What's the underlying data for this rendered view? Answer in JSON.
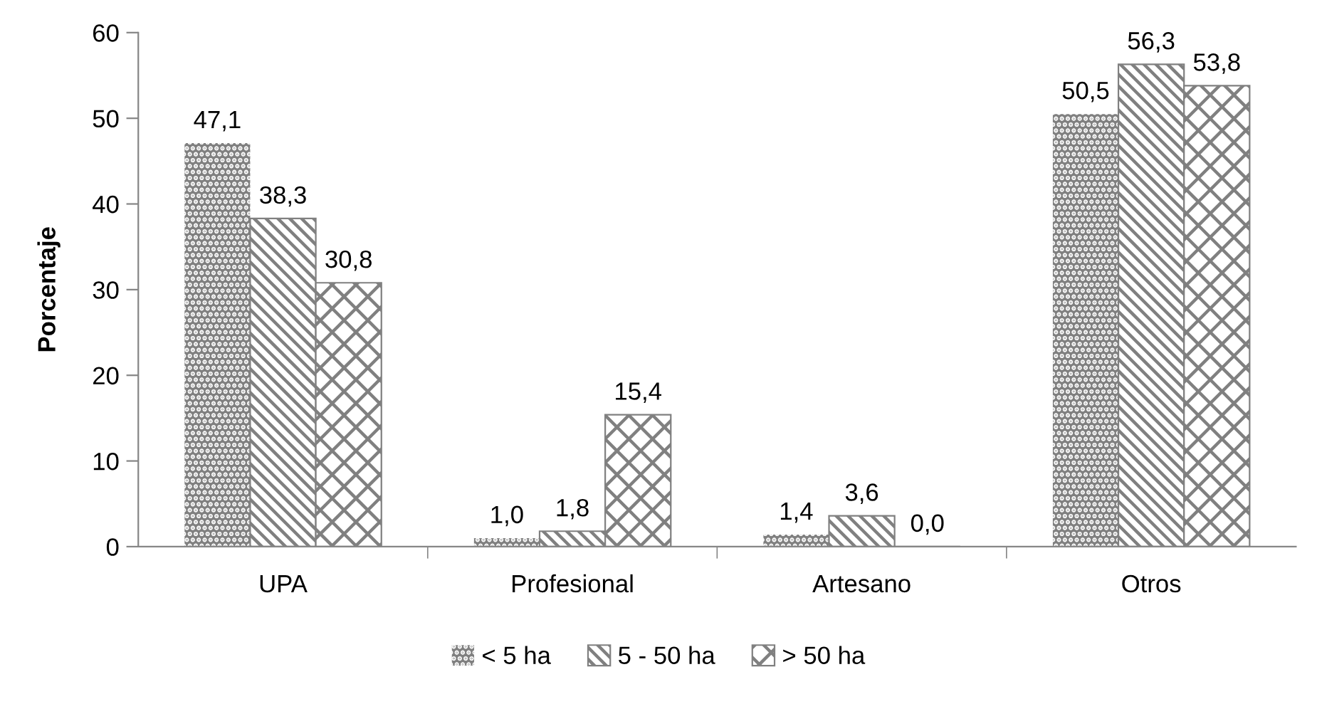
{
  "chart_data": {
    "type": "bar",
    "ylabel": "Porcentaje",
    "categories": [
      "UPA",
      "Profesional",
      "Artesano",
      "Otros"
    ],
    "series": [
      {
        "name": "< 5 ha",
        "color": "#808080",
        "values": [
          47.1,
          1.0,
          1.4,
          50.5
        ],
        "value_labels": [
          "47,1",
          "1,0",
          "1,4",
          "50,5"
        ]
      },
      {
        "name": "5 - 50 ha",
        "color": "#808080",
        "values": [
          38.3,
          1.8,
          3.6,
          56.3
        ],
        "value_labels": [
          "38,3",
          "1,8",
          "3,6",
          "56,3"
        ]
      },
      {
        "name": "> 50 ha",
        "color": "#808080",
        "values": [
          30.8,
          15.4,
          0.0,
          53.8
        ],
        "value_labels": [
          "30,8",
          "15,4",
          "0,0",
          "53,8"
        ]
      }
    ],
    "ylim": [
      0,
      60
    ],
    "yticks": [
      0,
      10,
      20,
      30,
      40,
      50,
      60
    ],
    "grid": false,
    "legend": "bottom"
  }
}
